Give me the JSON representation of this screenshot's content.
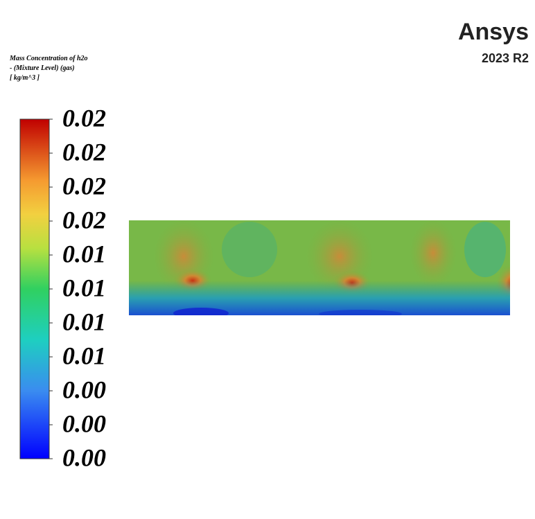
{
  "legend": {
    "title": [
      "Mass Concentration of h2o",
      "- (Mixture Level) (gas)",
      "[ kg/m^3 ]"
    ],
    "labels": [
      "0.02",
      "0.02",
      "0.02",
      "0.02",
      "0.01",
      "0.01",
      "0.01",
      "0.01",
      "0.00",
      "0.00",
      "0.00"
    ]
  },
  "logo": {
    "name": "Ansys",
    "version": "2023 R2"
  }
}
